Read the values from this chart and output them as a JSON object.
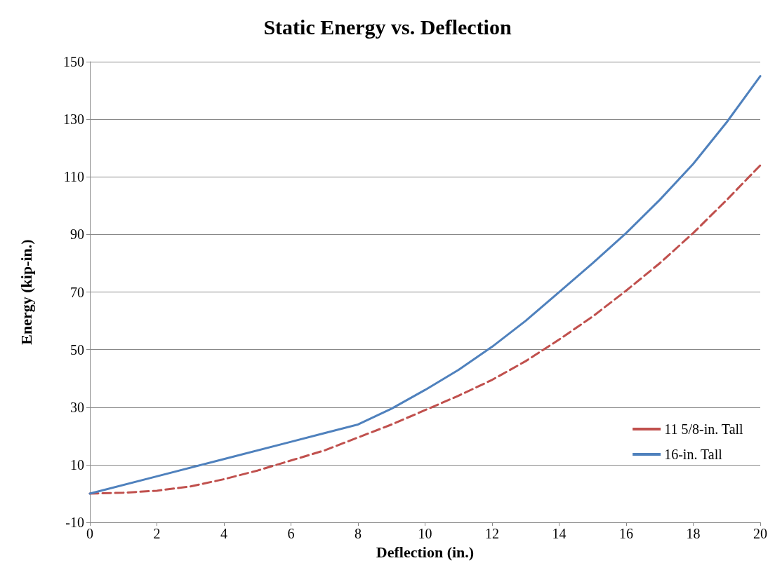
{
  "chart_data": {
    "type": "line",
    "title": "Static Energy vs. Deflection",
    "xlabel": "Deflection (in.)",
    "ylabel": "Energy (kip-in.)",
    "xlim": [
      0,
      20
    ],
    "xticks": [
      0,
      2,
      4,
      6,
      8,
      10,
      12,
      14,
      16,
      18,
      20
    ],
    "ylim": [
      -10,
      150
    ],
    "yticks": [
      -10,
      10,
      30,
      50,
      70,
      90,
      110,
      130,
      150
    ],
    "grid": "y",
    "legend": "bottom right",
    "marker": "none",
    "series": [
      {
        "name": "11 5/8-in. Tall",
        "color": "#c0504d",
        "line_style": "dashed",
        "x": [
          0,
          1,
          2,
          3,
          4,
          5,
          6,
          7,
          8,
          9,
          10,
          11,
          12,
          13,
          14,
          15,
          16,
          17,
          18,
          19,
          20
        ],
        "values": [
          0,
          0.3,
          1,
          2.5,
          5,
          8,
          11.5,
          15,
          19.5,
          24,
          29,
          34,
          39.5,
          46,
          53.5,
          61.5,
          70.5,
          80,
          90.5,
          102,
          114
        ]
      },
      {
        "name": "16-in. Tall",
        "color": "#4f81bd",
        "line_style": "solid",
        "x": [
          0,
          2,
          4,
          6,
          7,
          8,
          9,
          10,
          11,
          12,
          13,
          14,
          15,
          16,
          17,
          18,
          19,
          20
        ],
        "values": [
          0,
          6,
          12,
          18,
          21,
          24,
          29.5,
          36,
          43,
          51,
          60,
          70,
          80,
          90.5,
          102,
          114.5,
          129,
          145
        ]
      }
    ]
  }
}
